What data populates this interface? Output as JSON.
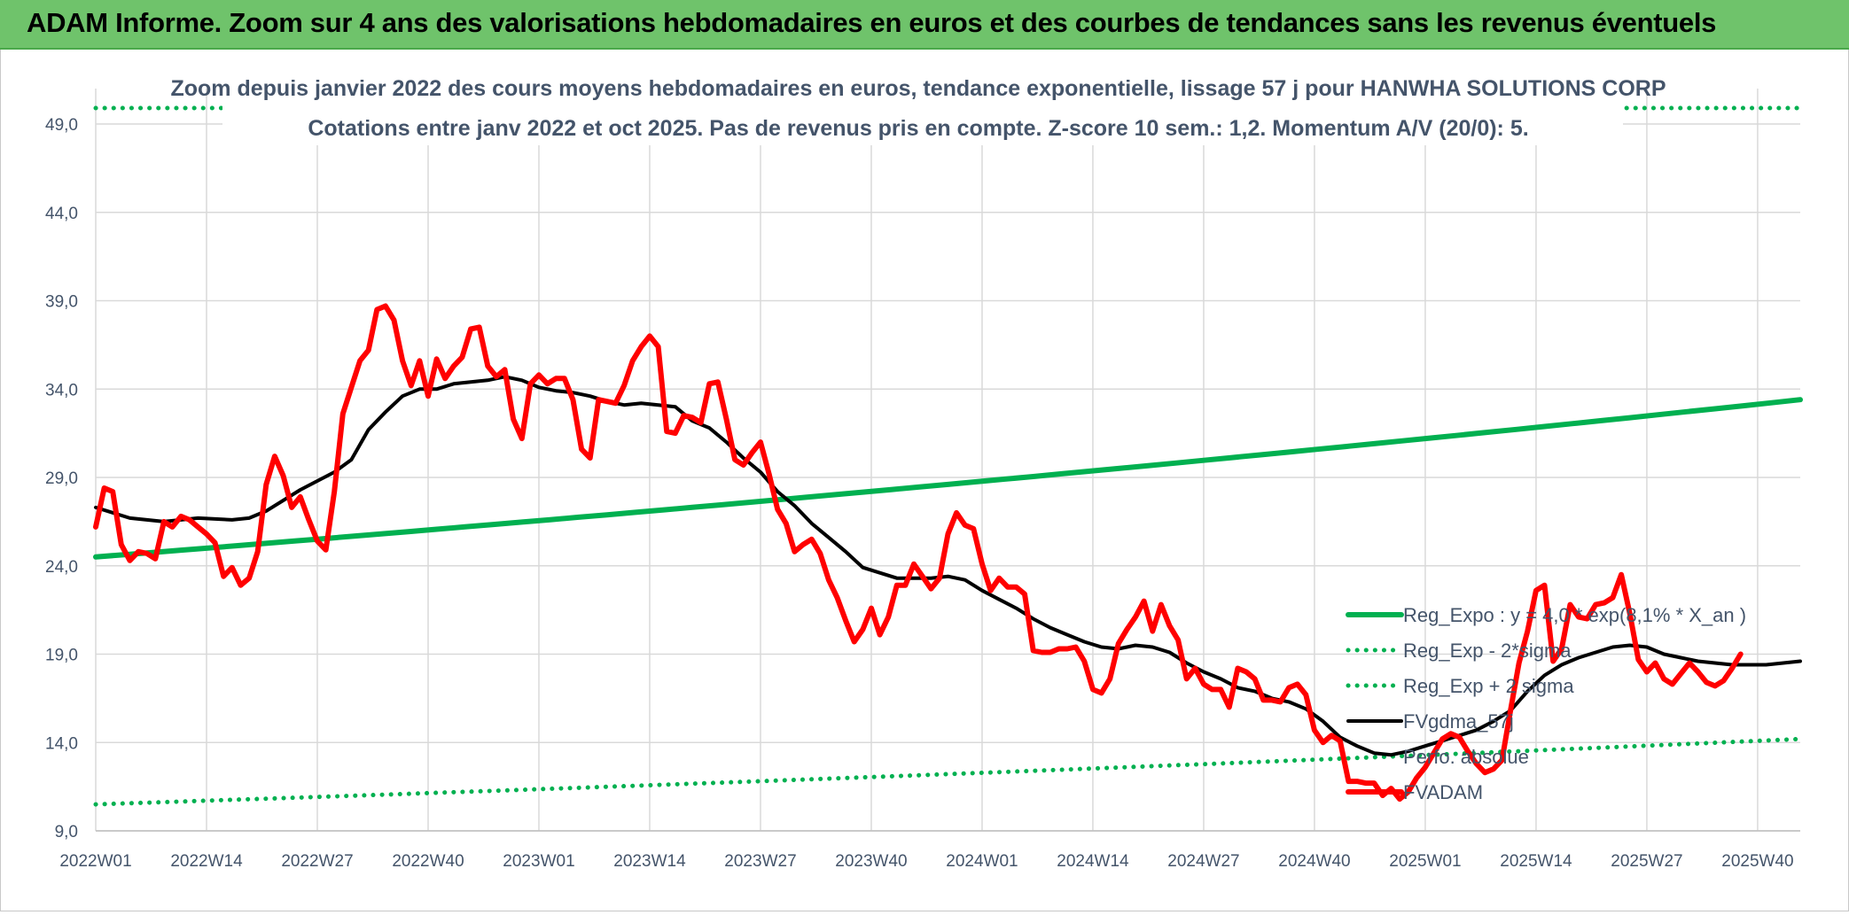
{
  "header": {
    "title": "ADAM Informe. Zoom sur 4 ans des valorisations hebdomadaires en euros et des courbes de tendances sans les revenus éventuels"
  },
  "colors": {
    "header_bg": "#6fc36b",
    "reg_expo": "#00b050",
    "fv_adam": "#ff0000",
    "fvgdma": "#000000",
    "grid": "#d9d9d9",
    "text": "#44546a"
  },
  "chart_data": {
    "type": "line",
    "title": "Zoom depuis janvier 2022 des cours moyens hebdomadaires en euros, tendance exponentielle, lissage 57 j pour HANWHA SOLUTIONS CORP",
    "subtitle": "Cotations entre janv 2022 et oct 2025. Pas de revenus pris en compte. Z-score 10 sem.: 1,2. Momentum A/V (20/0): 5.",
    "xlabel": "",
    "ylabel": "",
    "ylim": [
      9,
      49
    ],
    "yticks": [
      "9,0",
      "14,0",
      "19,0",
      "24,0",
      "29,0",
      "34,0",
      "39,0",
      "44,0",
      "49,0"
    ],
    "xticks": [
      "2022W01",
      "2022W14",
      "2022W27",
      "2022W40",
      "2023W01",
      "2023W14",
      "2023W27",
      "2023W40",
      "2024W01",
      "2024W14",
      "2024W27",
      "2024W40",
      "2025W01",
      "2025W14",
      "2025W27",
      "2025W40"
    ],
    "n_weeks": 201,
    "grid": true,
    "legend_position": "right",
    "legend": [
      {
        "label": "Reg_Expo : y = 4,0 * exp(8,1% * X_an )",
        "style": "solid",
        "color": "#00b050"
      },
      {
        "label": "Reg_Exp - 2*sigma",
        "style": "dotted",
        "color": "#00b050"
      },
      {
        "label": "Reg_Exp + 2 sigma",
        "style": "dotted",
        "color": "#00b050"
      },
      {
        "label": "FVgdma_57j",
        "style": "solid",
        "color": "#000000"
      },
      {
        "label": "Perfo. absolue",
        "style": "none",
        "color": "#7f7f7f"
      },
      {
        "label": "FVADAM",
        "style": "solid",
        "color": "#ff0000"
      }
    ],
    "series": [
      {
        "name": "Reg_Expo : y = 4,0 * exp(8,1% * X_an )",
        "style": "solid",
        "color": "#00b050",
        "growth_per_year": 0.081,
        "points": [
          [
            0,
            24.5
          ],
          [
            200,
            33.4
          ]
        ]
      },
      {
        "name": "Reg_Exp - 2*sigma",
        "style": "dotted",
        "color": "#00b050",
        "growth_per_year": 0.081,
        "points": [
          [
            0,
            10.5
          ],
          [
            200,
            14.2
          ]
        ]
      },
      {
        "name": "Reg_Exp + 2 sigma",
        "style": "dotted",
        "color": "#00b050",
        "growth_per_year": 0.081,
        "points": [
          [
            0,
            49.9
          ],
          [
            200,
            49.9
          ]
        ]
      },
      {
        "name": "FVgdma_57j",
        "style": "solid",
        "color": "#000000",
        "points": [
          [
            0,
            27.3
          ],
          [
            4,
            26.7
          ],
          [
            8,
            26.5
          ],
          [
            12,
            26.7
          ],
          [
            16,
            26.6
          ],
          [
            18,
            26.7
          ],
          [
            20,
            27.1
          ],
          [
            24,
            28.3
          ],
          [
            28,
            29.3
          ],
          [
            30,
            30.0
          ],
          [
            32,
            31.7
          ],
          [
            34,
            32.7
          ],
          [
            36,
            33.6
          ],
          [
            38,
            34.0
          ],
          [
            40,
            34.0
          ],
          [
            42,
            34.3
          ],
          [
            44,
            34.4
          ],
          [
            46,
            34.5
          ],
          [
            48,
            34.7
          ],
          [
            50,
            34.5
          ],
          [
            52,
            34.1
          ],
          [
            54,
            33.9
          ],
          [
            56,
            33.8
          ],
          [
            58,
            33.6
          ],
          [
            60,
            33.3
          ],
          [
            62,
            33.1
          ],
          [
            64,
            33.2
          ],
          [
            66,
            33.1
          ],
          [
            68,
            33.0
          ],
          [
            70,
            32.2
          ],
          [
            72,
            31.8
          ],
          [
            74,
            31.0
          ],
          [
            76,
            30.1
          ],
          [
            78,
            29.3
          ],
          [
            80,
            28.2
          ],
          [
            82,
            27.4
          ],
          [
            84,
            26.4
          ],
          [
            86,
            25.6
          ],
          [
            88,
            24.8
          ],
          [
            90,
            23.9
          ],
          [
            92,
            23.6
          ],
          [
            94,
            23.3
          ],
          [
            96,
            23.3
          ],
          [
            98,
            23.3
          ],
          [
            100,
            23.4
          ],
          [
            102,
            23.2
          ],
          [
            104,
            22.6
          ],
          [
            106,
            22.1
          ],
          [
            108,
            21.6
          ],
          [
            110,
            21.0
          ],
          [
            112,
            20.5
          ],
          [
            114,
            20.1
          ],
          [
            116,
            19.7
          ],
          [
            118,
            19.4
          ],
          [
            120,
            19.3
          ],
          [
            122,
            19.5
          ],
          [
            124,
            19.4
          ],
          [
            126,
            19.1
          ],
          [
            128,
            18.5
          ],
          [
            130,
            18.0
          ],
          [
            132,
            17.6
          ],
          [
            134,
            17.1
          ],
          [
            136,
            16.9
          ],
          [
            138,
            16.5
          ],
          [
            140,
            16.3
          ],
          [
            142,
            15.9
          ],
          [
            144,
            15.2
          ],
          [
            146,
            14.3
          ],
          [
            148,
            13.8
          ],
          [
            150,
            13.4
          ],
          [
            152,
            13.3
          ],
          [
            154,
            13.5
          ],
          [
            156,
            13.8
          ],
          [
            158,
            14.1
          ],
          [
            160,
            14.4
          ],
          [
            162,
            14.7
          ],
          [
            164,
            15.2
          ],
          [
            166,
            15.8
          ],
          [
            168,
            16.9
          ],
          [
            170,
            17.8
          ],
          [
            172,
            18.4
          ],
          [
            174,
            18.8
          ],
          [
            176,
            19.1
          ],
          [
            178,
            19.4
          ],
          [
            180,
            19.5
          ],
          [
            182,
            19.4
          ],
          [
            184,
            19.0
          ],
          [
            186,
            18.8
          ],
          [
            188,
            18.6
          ],
          [
            190,
            18.5
          ],
          [
            192,
            18.4
          ],
          [
            194,
            18.4
          ],
          [
            196,
            18.4
          ],
          [
            198,
            18.5
          ],
          [
            200,
            18.6
          ]
        ]
      },
      {
        "name": "FVADAM",
        "style": "solid",
        "color": "#ff0000",
        "points": [
          [
            0,
            26.2
          ],
          [
            1,
            28.4
          ],
          [
            2,
            28.2
          ],
          [
            3,
            25.2
          ],
          [
            4,
            24.3
          ],
          [
            5,
            24.8
          ],
          [
            6,
            24.7
          ],
          [
            7,
            24.4
          ],
          [
            8,
            26.5
          ],
          [
            9,
            26.2
          ],
          [
            10,
            26.8
          ],
          [
            11,
            26.6
          ],
          [
            12,
            26.2
          ],
          [
            13,
            25.8
          ],
          [
            14,
            25.3
          ],
          [
            15,
            23.4
          ],
          [
            16,
            23.9
          ],
          [
            17,
            22.9
          ],
          [
            18,
            23.3
          ],
          [
            19,
            24.8
          ],
          [
            20,
            28.6
          ],
          [
            21,
            30.2
          ],
          [
            22,
            29.1
          ],
          [
            23,
            27.3
          ],
          [
            24,
            27.9
          ],
          [
            25,
            26.6
          ],
          [
            26,
            25.4
          ],
          [
            27,
            24.9
          ],
          [
            28,
            28.2
          ],
          [
            29,
            32.6
          ],
          [
            30,
            34.1
          ],
          [
            31,
            35.6
          ],
          [
            32,
            36.2
          ],
          [
            33,
            38.5
          ],
          [
            34,
            38.7
          ],
          [
            35,
            37.9
          ],
          [
            36,
            35.6
          ],
          [
            37,
            34.2
          ],
          [
            38,
            35.6
          ],
          [
            39,
            33.6
          ],
          [
            40,
            35.7
          ],
          [
            41,
            34.6
          ],
          [
            42,
            35.3
          ],
          [
            43,
            35.8
          ],
          [
            44,
            37.4
          ],
          [
            45,
            37.5
          ],
          [
            46,
            35.3
          ],
          [
            47,
            34.7
          ],
          [
            48,
            35.1
          ],
          [
            49,
            32.3
          ],
          [
            50,
            31.2
          ],
          [
            51,
            34.3
          ],
          [
            52,
            34.8
          ],
          [
            53,
            34.3
          ],
          [
            54,
            34.6
          ],
          [
            55,
            34.6
          ],
          [
            56,
            33.4
          ],
          [
            57,
            30.6
          ],
          [
            58,
            30.1
          ],
          [
            59,
            33.4
          ],
          [
            60,
            33.3
          ],
          [
            61,
            33.2
          ],
          [
            62,
            34.2
          ],
          [
            63,
            35.6
          ],
          [
            64,
            36.4
          ],
          [
            65,
            37.0
          ],
          [
            66,
            36.4
          ],
          [
            67,
            31.6
          ],
          [
            68,
            31.5
          ],
          [
            69,
            32.5
          ],
          [
            70,
            32.4
          ],
          [
            71,
            32.1
          ],
          [
            72,
            34.3
          ],
          [
            73,
            34.4
          ],
          [
            74,
            32.3
          ],
          [
            75,
            30.0
          ],
          [
            76,
            29.7
          ],
          [
            77,
            30.4
          ],
          [
            78,
            31.0
          ],
          [
            79,
            29.2
          ],
          [
            80,
            27.2
          ],
          [
            81,
            26.4
          ],
          [
            82,
            24.8
          ],
          [
            83,
            25.2
          ],
          [
            84,
            25.5
          ],
          [
            85,
            24.7
          ],
          [
            86,
            23.2
          ],
          [
            87,
            22.2
          ],
          [
            88,
            20.9
          ],
          [
            89,
            19.7
          ],
          [
            90,
            20.4
          ],
          [
            91,
            21.6
          ],
          [
            92,
            20.1
          ],
          [
            93,
            21.1
          ],
          [
            94,
            22.9
          ],
          [
            95,
            22.9
          ],
          [
            96,
            24.1
          ],
          [
            97,
            23.4
          ],
          [
            98,
            22.7
          ],
          [
            99,
            23.3
          ],
          [
            100,
            25.8
          ],
          [
            101,
            27.0
          ],
          [
            102,
            26.3
          ],
          [
            103,
            26.1
          ],
          [
            104,
            24.1
          ],
          [
            105,
            22.6
          ],
          [
            106,
            23.3
          ],
          [
            107,
            22.8
          ],
          [
            108,
            22.8
          ],
          [
            109,
            22.4
          ],
          [
            110,
            19.2
          ],
          [
            111,
            19.1
          ],
          [
            112,
            19.1
          ],
          [
            113,
            19.3
          ],
          [
            114,
            19.3
          ],
          [
            115,
            19.4
          ],
          [
            116,
            18.6
          ],
          [
            117,
            17.0
          ],
          [
            118,
            16.8
          ],
          [
            119,
            17.6
          ],
          [
            120,
            19.6
          ],
          [
            121,
            20.4
          ],
          [
            122,
            21.1
          ],
          [
            123,
            22.0
          ],
          [
            124,
            20.3
          ],
          [
            125,
            21.8
          ],
          [
            126,
            20.6
          ],
          [
            127,
            19.8
          ],
          [
            128,
            17.6
          ],
          [
            129,
            18.2
          ],
          [
            130,
            17.3
          ],
          [
            131,
            17.0
          ],
          [
            132,
            17.0
          ],
          [
            133,
            16.0
          ],
          [
            134,
            18.2
          ],
          [
            135,
            18.0
          ],
          [
            136,
            17.6
          ],
          [
            137,
            16.4
          ],
          [
            138,
            16.4
          ],
          [
            139,
            16.3
          ],
          [
            140,
            17.1
          ],
          [
            141,
            17.3
          ],
          [
            142,
            16.7
          ],
          [
            143,
            14.7
          ],
          [
            144,
            14.0
          ],
          [
            145,
            14.4
          ],
          [
            146,
            14.1
          ],
          [
            147,
            11.8
          ],
          [
            148,
            11.8
          ],
          [
            149,
            11.7
          ],
          [
            150,
            11.7
          ],
          [
            151,
            11.0
          ],
          [
            152,
            11.4
          ],
          [
            153,
            10.8
          ],
          [
            154,
            11.2
          ],
          [
            155,
            12.0
          ],
          [
            156,
            12.6
          ],
          [
            157,
            13.4
          ],
          [
            158,
            14.2
          ],
          [
            159,
            14.5
          ],
          [
            160,
            14.3
          ],
          [
            161,
            13.5
          ],
          [
            162,
            12.8
          ],
          [
            163,
            12.3
          ],
          [
            164,
            12.5
          ],
          [
            165,
            13.0
          ],
          [
            166,
            15.8
          ],
          [
            167,
            18.5
          ],
          [
            168,
            20.3
          ],
          [
            169,
            22.6
          ],
          [
            170,
            22.9
          ],
          [
            171,
            18.6
          ],
          [
            172,
            19.3
          ],
          [
            173,
            21.8
          ],
          [
            174,
            21.1
          ],
          [
            175,
            21.0
          ],
          [
            176,
            21.8
          ],
          [
            177,
            21.9
          ],
          [
            178,
            22.2
          ],
          [
            179,
            23.5
          ],
          [
            180,
            21.3
          ],
          [
            181,
            18.7
          ],
          [
            182,
            18.0
          ],
          [
            183,
            18.5
          ],
          [
            184,
            17.6
          ],
          [
            185,
            17.3
          ],
          [
            186,
            17.9
          ],
          [
            187,
            18.5
          ],
          [
            188,
            18.0
          ],
          [
            189,
            17.4
          ],
          [
            190,
            17.2
          ],
          [
            191,
            17.5
          ],
          [
            192,
            18.2
          ],
          [
            193,
            19.0
          ]
        ]
      }
    ]
  }
}
